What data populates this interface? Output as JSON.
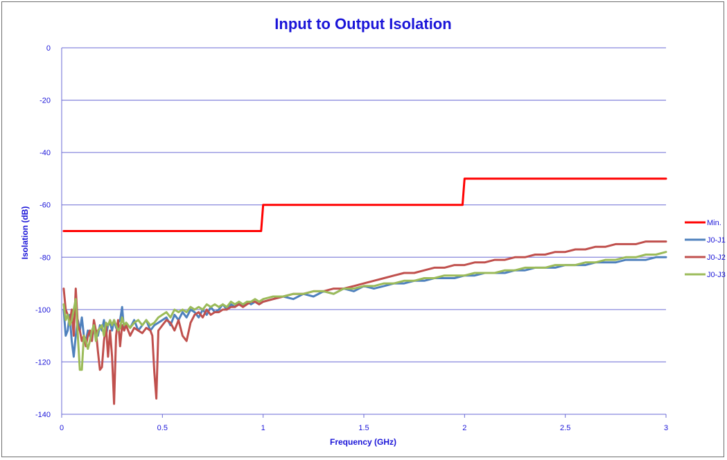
{
  "chart_data": {
    "type": "line",
    "title": "Input to Output Isolation",
    "xlabel": "Frequency (GHz)",
    "ylabel": "Isolation (dB)",
    "xlim": [
      0,
      3
    ],
    "ylim": [
      -140,
      0
    ],
    "xticks": [
      0,
      0.5,
      1,
      1.5,
      2,
      2.5,
      3
    ],
    "xtick_labels": [
      "0",
      "0.5",
      "1",
      "1.5",
      "2",
      "2.5",
      "3"
    ],
    "yticks": [
      0,
      -20,
      -40,
      -60,
      -80,
      -100,
      -120,
      -140
    ],
    "ytick_labels": [
      "0",
      "-20",
      "-40",
      "-60",
      "-80",
      "-100",
      "-120",
      "-140"
    ],
    "grid": true,
    "legend_position": "right",
    "series": [
      {
        "name": "Min.",
        "color": "#ff0000",
        "x": [
          0.01,
          0.98,
          0.99,
          1.0,
          1.98,
          1.99,
          2.0,
          3.0
        ],
        "y": [
          -70,
          -70,
          -70,
          -60,
          -60,
          -60,
          -50,
          -50
        ]
      },
      {
        "name": "J0-J1",
        "color": "#4f81bd",
        "x": [
          0.01,
          0.02,
          0.03,
          0.04,
          0.05,
          0.06,
          0.07,
          0.08,
          0.09,
          0.1,
          0.11,
          0.12,
          0.13,
          0.14,
          0.15,
          0.16,
          0.17,
          0.18,
          0.19,
          0.2,
          0.21,
          0.22,
          0.23,
          0.24,
          0.25,
          0.26,
          0.27,
          0.28,
          0.29,
          0.3,
          0.31,
          0.32,
          0.34,
          0.36,
          0.38,
          0.4,
          0.42,
          0.44,
          0.46,
          0.48,
          0.5,
          0.52,
          0.54,
          0.56,
          0.58,
          0.6,
          0.62,
          0.64,
          0.66,
          0.68,
          0.7,
          0.72,
          0.74,
          0.76,
          0.78,
          0.8,
          0.82,
          0.84,
          0.86,
          0.88,
          0.9,
          0.92,
          0.94,
          0.96,
          0.98,
          1.0,
          1.05,
          1.1,
          1.15,
          1.2,
          1.25,
          1.3,
          1.35,
          1.4,
          1.45,
          1.5,
          1.55,
          1.6,
          1.65,
          1.7,
          1.75,
          1.8,
          1.85,
          1.9,
          1.95,
          2.0,
          2.05,
          2.1,
          2.15,
          2.2,
          2.25,
          2.3,
          2.35,
          2.4,
          2.45,
          2.5,
          2.55,
          2.6,
          2.65,
          2.7,
          2.75,
          2.8,
          2.85,
          2.9,
          2.95,
          3.0
        ],
        "y": [
          -100,
          -110,
          -108,
          -102,
          -112,
          -118,
          -110,
          -104,
          -108,
          -103,
          -110,
          -112,
          -108,
          -110,
          -112,
          -106,
          -108,
          -110,
          -106,
          -108,
          -104,
          -110,
          -106,
          -105,
          -108,
          -104,
          -107,
          -105,
          -104,
          -99,
          -108,
          -105,
          -107,
          -104,
          -108,
          -106,
          -104,
          -108,
          -106,
          -105,
          -104,
          -103,
          -106,
          -102,
          -104,
          -101,
          -103,
          -100,
          -101,
          -103,
          -100,
          -102,
          -99,
          -101,
          -100,
          -98,
          -100,
          -98,
          -99,
          -97,
          -99,
          -97,
          -98,
          -97,
          -98,
          -97,
          -96,
          -95,
          -96,
          -94,
          -95,
          -93,
          -94,
          -92,
          -93,
          -91,
          -92,
          -91,
          -90,
          -90,
          -89,
          -89,
          -88,
          -88,
          -88,
          -87,
          -87,
          -86,
          -86,
          -86,
          -85,
          -85,
          -84,
          -84,
          -84,
          -83,
          -83,
          -83,
          -82,
          -82,
          -82,
          -81,
          -81,
          -81,
          -80,
          -80
        ]
      },
      {
        "name": "J0-J2",
        "color": "#c0504d",
        "x": [
          0.01,
          0.02,
          0.03,
          0.04,
          0.05,
          0.06,
          0.07,
          0.08,
          0.09,
          0.1,
          0.11,
          0.12,
          0.13,
          0.14,
          0.15,
          0.16,
          0.17,
          0.18,
          0.19,
          0.2,
          0.21,
          0.22,
          0.23,
          0.24,
          0.25,
          0.26,
          0.27,
          0.28,
          0.29,
          0.3,
          0.31,
          0.32,
          0.34,
          0.36,
          0.38,
          0.4,
          0.42,
          0.44,
          0.45,
          0.46,
          0.47,
          0.48,
          0.5,
          0.52,
          0.54,
          0.56,
          0.58,
          0.6,
          0.62,
          0.64,
          0.66,
          0.68,
          0.7,
          0.72,
          0.74,
          0.76,
          0.78,
          0.8,
          0.82,
          0.84,
          0.86,
          0.88,
          0.9,
          0.92,
          0.94,
          0.96,
          0.98,
          1.0,
          1.05,
          1.1,
          1.15,
          1.2,
          1.25,
          1.3,
          1.35,
          1.4,
          1.45,
          1.5,
          1.55,
          1.6,
          1.65,
          1.7,
          1.75,
          1.8,
          1.85,
          1.9,
          1.95,
          2.0,
          2.05,
          2.1,
          2.15,
          2.2,
          2.25,
          2.3,
          2.35,
          2.4,
          2.45,
          2.5,
          2.55,
          2.6,
          2.65,
          2.7,
          2.75,
          2.8,
          2.85,
          2.9,
          2.95,
          3.0
        ],
        "y": [
          -92,
          -100,
          -102,
          -105,
          -100,
          -110,
          -92,
          -106,
          -108,
          -112,
          -110,
          -114,
          -110,
          -108,
          -112,
          -104,
          -108,
          -116,
          -123,
          -122,
          -112,
          -106,
          -118,
          -108,
          -118,
          -136,
          -110,
          -104,
          -114,
          -106,
          -108,
          -106,
          -110,
          -107,
          -108,
          -109,
          -107,
          -108,
          -110,
          -124,
          -134,
          -108,
          -106,
          -104,
          -105,
          -108,
          -104,
          -110,
          -112,
          -105,
          -102,
          -101,
          -103,
          -100,
          -102,
          -101,
          -101,
          -100,
          -100,
          -99,
          -99,
          -98,
          -99,
          -98,
          -97,
          -97,
          -98,
          -97,
          -96,
          -95,
          -94,
          -94,
          -93,
          -93,
          -92,
          -92,
          -91,
          -90,
          -89,
          -88,
          -87,
          -86,
          -86,
          -85,
          -84,
          -84,
          -83,
          -83,
          -82,
          -82,
          -81,
          -81,
          -80,
          -80,
          -79,
          -79,
          -78,
          -78,
          -77,
          -77,
          -76,
          -76,
          -75,
          -75,
          -75,
          -74,
          -74,
          -74
        ]
      },
      {
        "name": "J0-J3",
        "color": "#9bbb59",
        "x": [
          0.01,
          0.02,
          0.03,
          0.04,
          0.05,
          0.06,
          0.07,
          0.08,
          0.09,
          0.1,
          0.11,
          0.12,
          0.13,
          0.14,
          0.15,
          0.16,
          0.17,
          0.18,
          0.19,
          0.2,
          0.21,
          0.22,
          0.23,
          0.24,
          0.25,
          0.26,
          0.27,
          0.28,
          0.29,
          0.3,
          0.31,
          0.32,
          0.34,
          0.36,
          0.38,
          0.4,
          0.42,
          0.44,
          0.46,
          0.48,
          0.5,
          0.52,
          0.54,
          0.56,
          0.58,
          0.6,
          0.62,
          0.64,
          0.66,
          0.68,
          0.7,
          0.72,
          0.74,
          0.76,
          0.78,
          0.8,
          0.82,
          0.84,
          0.86,
          0.88,
          0.9,
          0.92,
          0.94,
          0.96,
          0.98,
          1.0,
          1.05,
          1.1,
          1.15,
          1.2,
          1.25,
          1.3,
          1.35,
          1.4,
          1.45,
          1.5,
          1.55,
          1.6,
          1.65,
          1.7,
          1.75,
          1.8,
          1.85,
          1.9,
          1.95,
          2.0,
          2.05,
          2.1,
          2.15,
          2.2,
          2.25,
          2.3,
          2.35,
          2.4,
          2.45,
          2.5,
          2.55,
          2.6,
          2.65,
          2.7,
          2.75,
          2.8,
          2.85,
          2.9,
          2.95,
          3.0
        ],
        "y": [
          -98,
          -104,
          -102,
          -106,
          -104,
          -100,
          -96,
          -110,
          -123,
          -123,
          -110,
          -112,
          -115,
          -112,
          -108,
          -106,
          -112,
          -108,
          -107,
          -106,
          -110,
          -105,
          -106,
          -104,
          -106,
          -104,
          -106,
          -108,
          -107,
          -103,
          -106,
          -105,
          -107,
          -105,
          -104,
          -106,
          -104,
          -106,
          -105,
          -103,
          -102,
          -101,
          -103,
          -100,
          -101,
          -100,
          -101,
          -99,
          -100,
          -99,
          -100,
          -98,
          -99,
          -98,
          -99,
          -98,
          -99,
          -97,
          -98,
          -97,
          -98,
          -97,
          -97,
          -96,
          -97,
          -96,
          -95,
          -95,
          -94,
          -94,
          -93,
          -93,
          -94,
          -92,
          -92,
          -91,
          -91,
          -90,
          -90,
          -89,
          -89,
          -88,
          -88,
          -87,
          -87,
          -87,
          -86,
          -86,
          -86,
          -85,
          -85,
          -84,
          -84,
          -84,
          -83,
          -83,
          -83,
          -82,
          -82,
          -81,
          -81,
          -80,
          -80,
          -79,
          -79,
          -78
        ]
      }
    ]
  }
}
